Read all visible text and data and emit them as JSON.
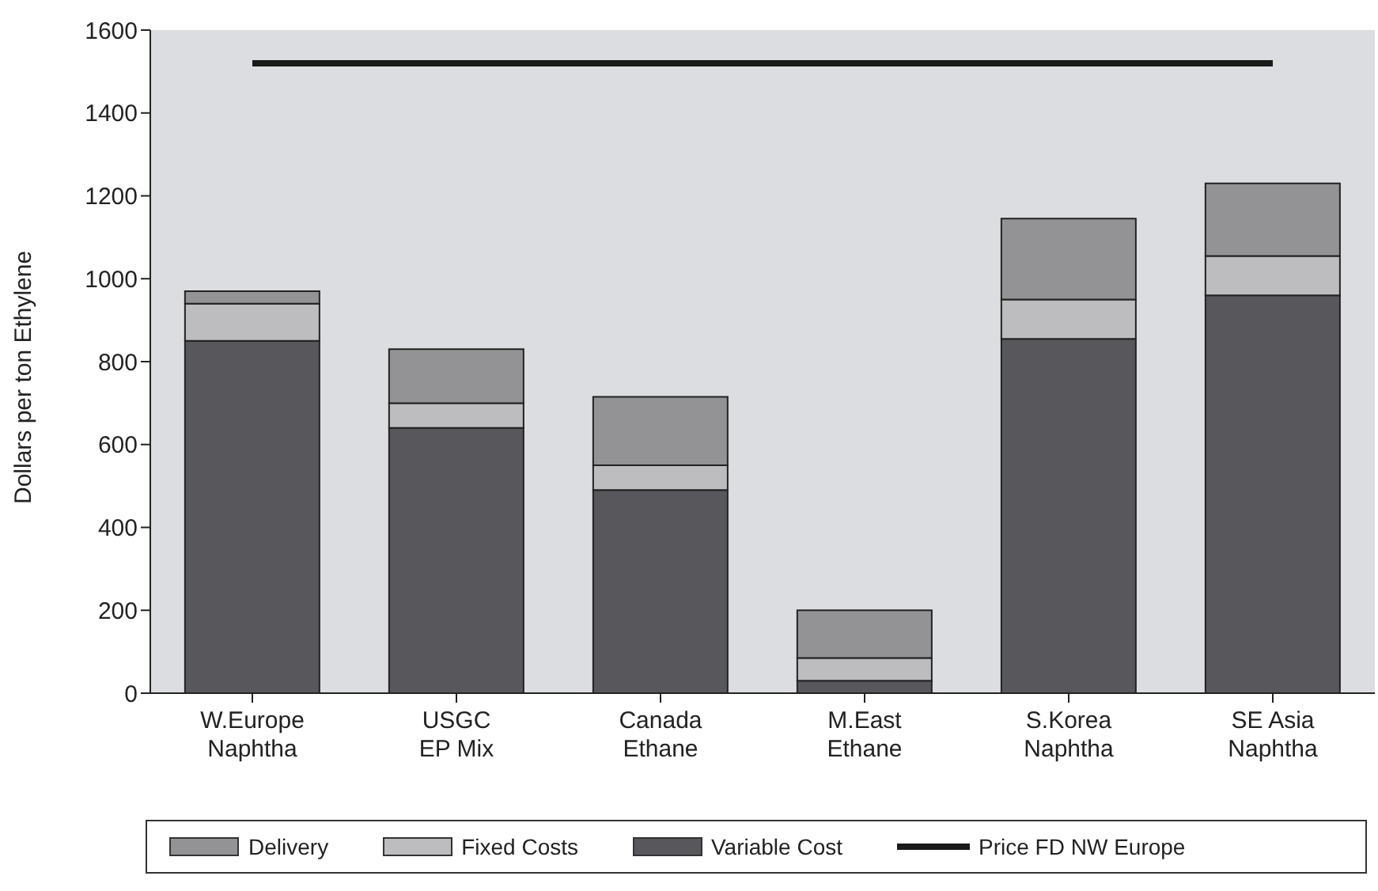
{
  "chart_data": {
    "type": "bar",
    "stacked": true,
    "ylabel": "Dollars per ton Ethylene",
    "categories": [
      "W.Europe\nNaphtha",
      "USGC\nEP Mix",
      "Canada\nEthane",
      "M.East\nEthane",
      "S.Korea\nNaphtha",
      "SE Asia\nNaphtha"
    ],
    "series": [
      {
        "name": "Variable Cost",
        "color": "#58575b",
        "values": [
          850,
          640,
          490,
          30,
          855,
          960
        ]
      },
      {
        "name": "Fixed Costs",
        "color": "#bdbdc0",
        "values": [
          90,
          60,
          60,
          55,
          95,
          95
        ]
      },
      {
        "name": "Delivery",
        "color": "#939396",
        "values": [
          30,
          130,
          165,
          115,
          195,
          175
        ]
      },
      {
        "name": "Price FD NW Europe",
        "type": "line",
        "color": "#1a1a1a",
        "values": [
          1520,
          1520,
          1520,
          1520,
          1520,
          1520
        ]
      }
    ],
    "ylim": [
      0,
      1600
    ],
    "yticks": [
      0,
      200,
      400,
      600,
      800,
      1000,
      1200,
      1400,
      1600
    ],
    "grid": false,
    "legend": "bottom",
    "marker": "none"
  }
}
